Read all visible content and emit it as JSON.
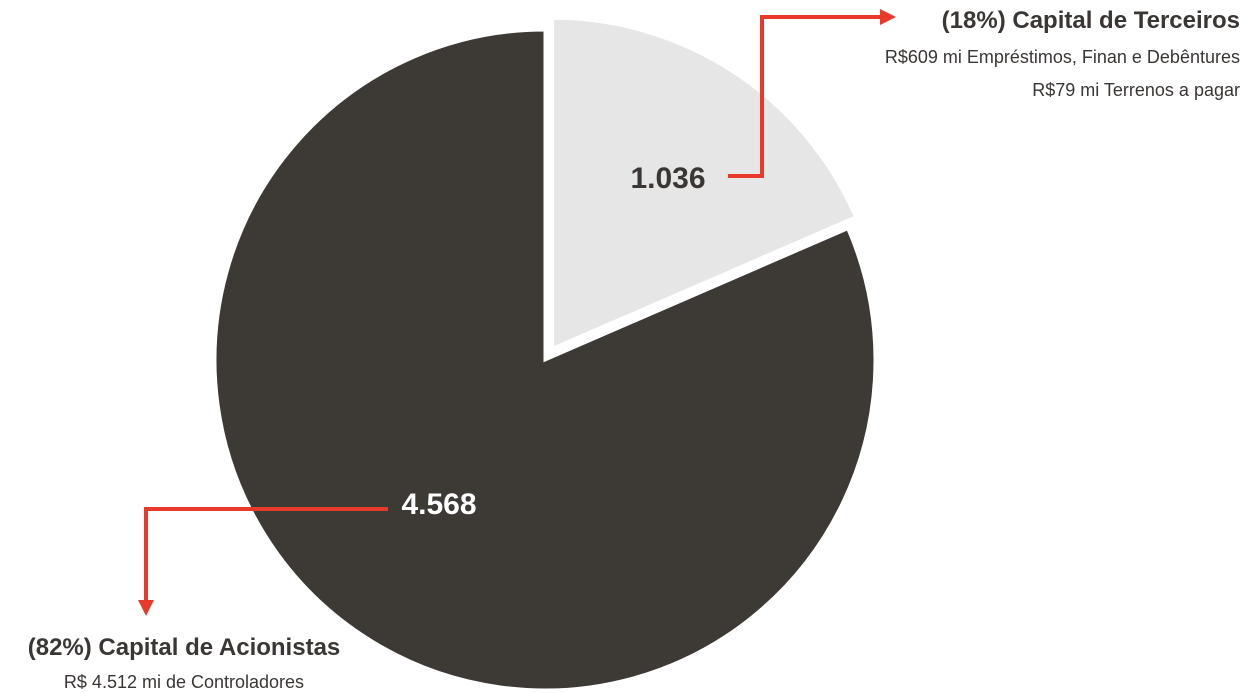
{
  "chart_data": {
    "type": "pie",
    "slices": [
      {
        "value": 1036,
        "value_label": "1.036",
        "share_pct": 18,
        "color": "#e6e6e6",
        "label_color": "#3a3633",
        "exploded": true,
        "annotation": {
          "title": "(18%) Capital de Terceiros",
          "lines": [
            "R$609 mi Empréstimos, Finan e Debêntures",
            "R$79 mi Terrenos a pagar"
          ]
        }
      },
      {
        "value": 4568,
        "value_label": "4.568",
        "share_pct": 82,
        "color": "#3d3935",
        "label_color": "#ffffff",
        "exploded": false,
        "annotation": {
          "title": "(82%) Capital de Acionistas",
          "lines": [
            "R$ 4.512 mi de Controladores"
          ]
        }
      }
    ],
    "connector_color": "#e8392b",
    "legend": "none"
  }
}
